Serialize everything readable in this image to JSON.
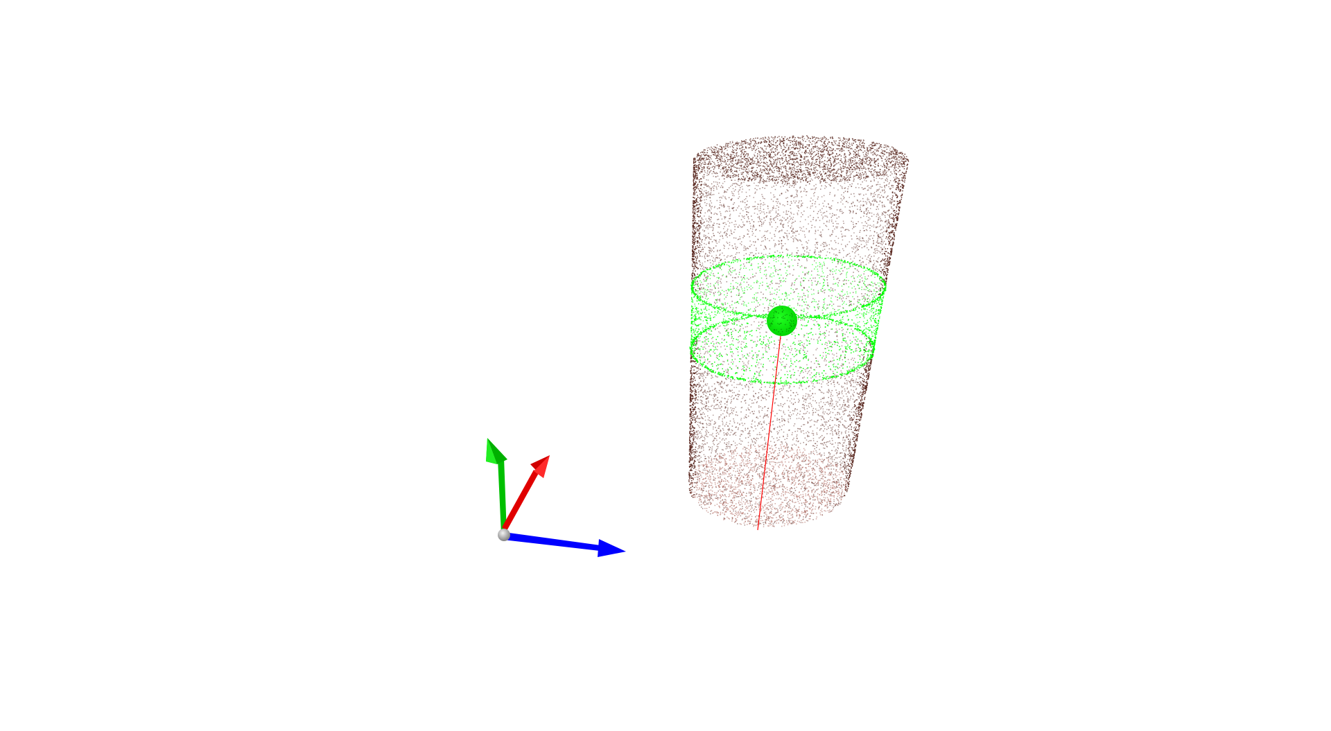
{
  "viewer": {
    "background_color": "#ffffff",
    "point_cloud_color": "#5a2820",
    "highlight_color": "#00ff00",
    "axis_line_color": "#ff0000"
  },
  "coordinate_frame": {
    "x_axis_color": "#0000ff",
    "y_axis_color": "#00c000",
    "z_axis_color": "#e00000",
    "origin_color": "#a0a0a0"
  },
  "icons": {
    "frame": "axes-gizmo-icon",
    "center": "sphere-marker-icon"
  }
}
